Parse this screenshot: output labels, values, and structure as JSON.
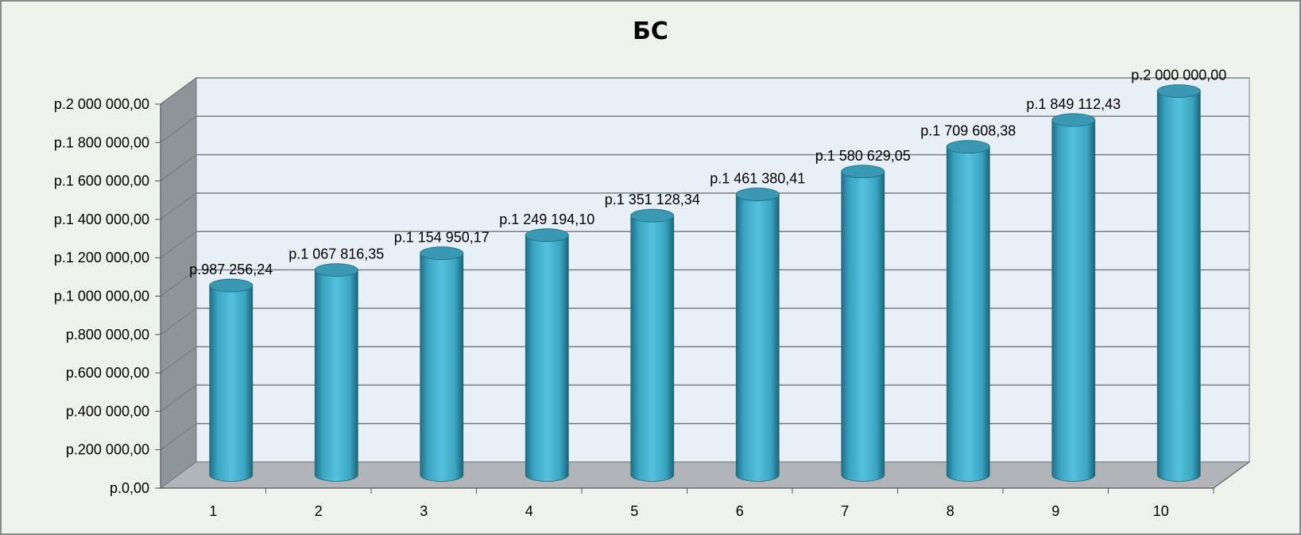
{
  "chart_data": {
    "type": "bar",
    "style": "3d-cylinder",
    "title": "БС",
    "xlabel": "",
    "ylabel": "",
    "categories": [
      "1",
      "2",
      "3",
      "4",
      "5",
      "6",
      "7",
      "8",
      "9",
      "10"
    ],
    "values": [
      987256.24,
      1067816.35,
      1154950.17,
      1249194.1,
      1351128.34,
      1461380.41,
      1580629.05,
      1709608.38,
      1849112.43,
      2000000.0
    ],
    "data_labels": [
      "р.987 256,24",
      "р.1 067 816,35",
      "р.1 154 950,17",
      "р.1 249 194,10",
      "р.1 351 128,34",
      "р.1 461 380,41",
      "р.1 580 629,05",
      "р.1 709 608,38",
      "р.1 849 112,43",
      "р.2 000 000,00"
    ],
    "y_ticks": [
      0,
      200000,
      400000,
      600000,
      800000,
      1000000,
      1200000,
      1400000,
      1600000,
      1800000,
      2000000
    ],
    "y_tick_labels": [
      "р.0,00",
      "р.200 000,00",
      "р.400 000,00",
      "р.600 000,00",
      "р.800 000,00",
      "р.1 000 000,00",
      "р.1 200 000,00",
      "р.1 400 000,00",
      "р.1 600 000,00",
      "р.1 800 000,00",
      "р.2 000 000,00"
    ],
    "ylim": [
      0,
      2000000
    ],
    "grid": true,
    "legend": "none",
    "colors": {
      "bar": "#4bb8d4",
      "bar_dark": "#1f6f86",
      "bar_top": "#3a98b3",
      "back_wall": "#e8eff6",
      "side_wall": "#8e9599",
      "floor": "#b1b5b8",
      "gridline": "#7a7f83",
      "background": "#eff1ec"
    }
  }
}
